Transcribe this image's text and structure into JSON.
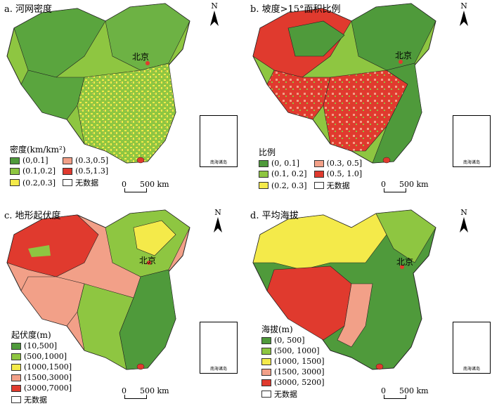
{
  "panels": [
    {
      "title": "a. 河网密度",
      "legend_title": "密度(km/km²)",
      "items": [
        {
          "label": "(0,0.1]",
          "color": "#4f9a3b"
        },
        {
          "label": "(0.3,0.5]",
          "color": "#f2a088"
        },
        {
          "label": "(0.1,0.2]",
          "color": "#8ec641"
        },
        {
          "label": "(0.5,1.3]",
          "color": "#e03a2e"
        },
        {
          "label": "(0.2,0.3]",
          "color": "#f4ea4a"
        },
        {
          "label": "无数据",
          "color": "#ffffff"
        }
      ],
      "scale": "500 km",
      "scale_zero": "0",
      "capital": "北京",
      "inset_caption": "南海诸岛",
      "north": "N"
    },
    {
      "title": "b. 坡度>15°面积比例",
      "legend_title": "比例",
      "items": [
        {
          "label": "(0, 0.1]",
          "color": "#4f9a3b"
        },
        {
          "label": "(0.3, 0.5]",
          "color": "#f2a088"
        },
        {
          "label": "(0.1, 0.2]",
          "color": "#8ec641"
        },
        {
          "label": "(0.5, 1.0]",
          "color": "#e03a2e"
        },
        {
          "label": "(0.2, 0.3]",
          "color": "#f4ea4a"
        },
        {
          "label": "无数据",
          "color": "#ffffff"
        }
      ],
      "scale": "500 km",
      "scale_zero": "0",
      "capital": "北京",
      "inset_caption": "南海诸岛",
      "north": "N"
    },
    {
      "title": "c. 地形起伏度",
      "legend_title": "起伏度(m)",
      "items": [
        {
          "label": "(10,500]",
          "color": "#4f9a3b"
        },
        {
          "label": "(500,1000]",
          "color": "#8ec641"
        },
        {
          "label": "(1000,1500]",
          "color": "#f4ea4a"
        },
        {
          "label": "(1500,3000]",
          "color": "#f2a088"
        },
        {
          "label": "(3000,7000]",
          "color": "#e03a2e"
        },
        {
          "label": "无数据",
          "color": "#ffffff"
        }
      ],
      "scale": "500 km",
      "scale_zero": "0",
      "capital": "北京",
      "inset_caption": "南海诸岛",
      "north": "N"
    },
    {
      "title": "d. 平均海拔",
      "legend_title": "海拔(m)",
      "items": [
        {
          "label": "(0, 500]",
          "color": "#4f9a3b"
        },
        {
          "label": "(500, 1000]",
          "color": "#8ec641"
        },
        {
          "label": "(1000, 1500]",
          "color": "#f4ea4a"
        },
        {
          "label": "(1500, 3000]",
          "color": "#f2a088"
        },
        {
          "label": "(3000, 5200]",
          "color": "#e03a2e"
        },
        {
          "label": "无数据",
          "color": "#ffffff"
        }
      ],
      "scale": "500 km",
      "scale_zero": "0",
      "capital": "北京",
      "inset_caption": "南海诸岛",
      "north": "N"
    }
  ]
}
